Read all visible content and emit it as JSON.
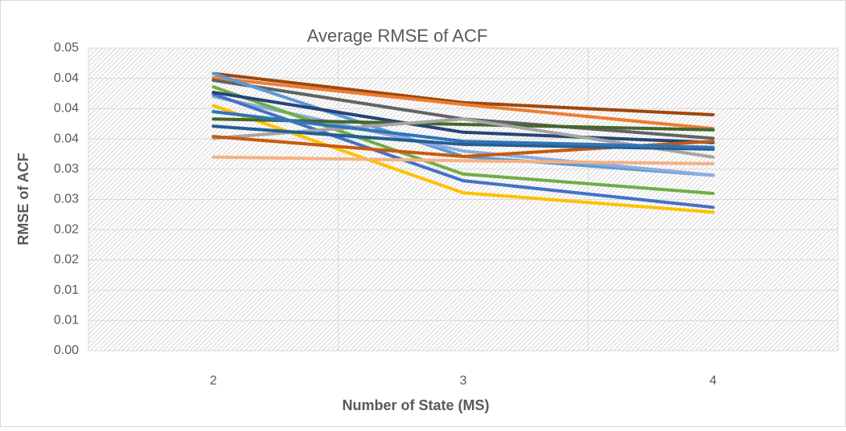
{
  "chart_data": {
    "type": "line",
    "title": "Average RMSE of ACF",
    "x_label": "Number of State (MS)",
    "y_label": "RMSE of ACF",
    "categories": [
      "2",
      "3",
      "4"
    ],
    "ylim": [
      0,
      0.05
    ],
    "yticks": [
      {
        "value": 0,
        "label": "0.00"
      },
      {
        "value": 0.005,
        "label": "0.01"
      },
      0.01,
      {
        "value": 0.015,
        "label": "0.02"
      },
      0.02,
      {
        "value": 0.025,
        "label": "0.03"
      },
      0.03,
      {
        "value": 0.035,
        "label": "0.04"
      },
      0.04,
      {
        "value": 0.045,
        "label": "0.04"
      },
      0.05
    ],
    "grid": true,
    "series": [
      {
        "color": "#9e480e",
        "values": [
          0.0458,
          0.041,
          0.039
        ]
      },
      {
        "color": "#ed7d31",
        "values": [
          0.0451,
          0.0407,
          0.0367
        ]
      },
      {
        "color": "#636363",
        "values": [
          0.0447,
          0.0383,
          0.0351
        ]
      },
      {
        "color": "#5b9bd5",
        "values": [
          0.0458,
          0.0321,
          0.029
        ]
      },
      {
        "color": "#8faadc",
        "values": [
          0.042,
          0.033,
          0.029
        ]
      },
      {
        "color": "#4472c4",
        "values": [
          0.0424,
          0.0281,
          0.0237
        ]
      },
      {
        "color": "#70ad47",
        "values": [
          0.0436,
          0.0292,
          0.026
        ]
      },
      {
        "color": "#ffc000",
        "values": [
          0.0405,
          0.0261,
          0.0229
        ]
      },
      {
        "color": "#264478",
        "values": [
          0.0427,
          0.0361,
          0.0344
        ]
      },
      {
        "color": "#43682b",
        "values": [
          0.0383,
          0.0374,
          0.0365
        ]
      },
      {
        "color": "#a5a5a5",
        "values": [
          0.0351,
          0.0383,
          0.032
        ]
      },
      {
        "color": "#f4b183",
        "values": [
          0.032,
          0.0314,
          0.0309
        ]
      },
      {
        "color": "#c55a11",
        "values": [
          0.0354,
          0.0321,
          0.0346
        ]
      },
      {
        "color": "#255e91",
        "values": [
          0.0371,
          0.0341,
          0.0333
        ]
      },
      {
        "color": "#2e75b6",
        "values": [
          0.0395,
          0.0346,
          0.0336
        ]
      }
    ]
  }
}
